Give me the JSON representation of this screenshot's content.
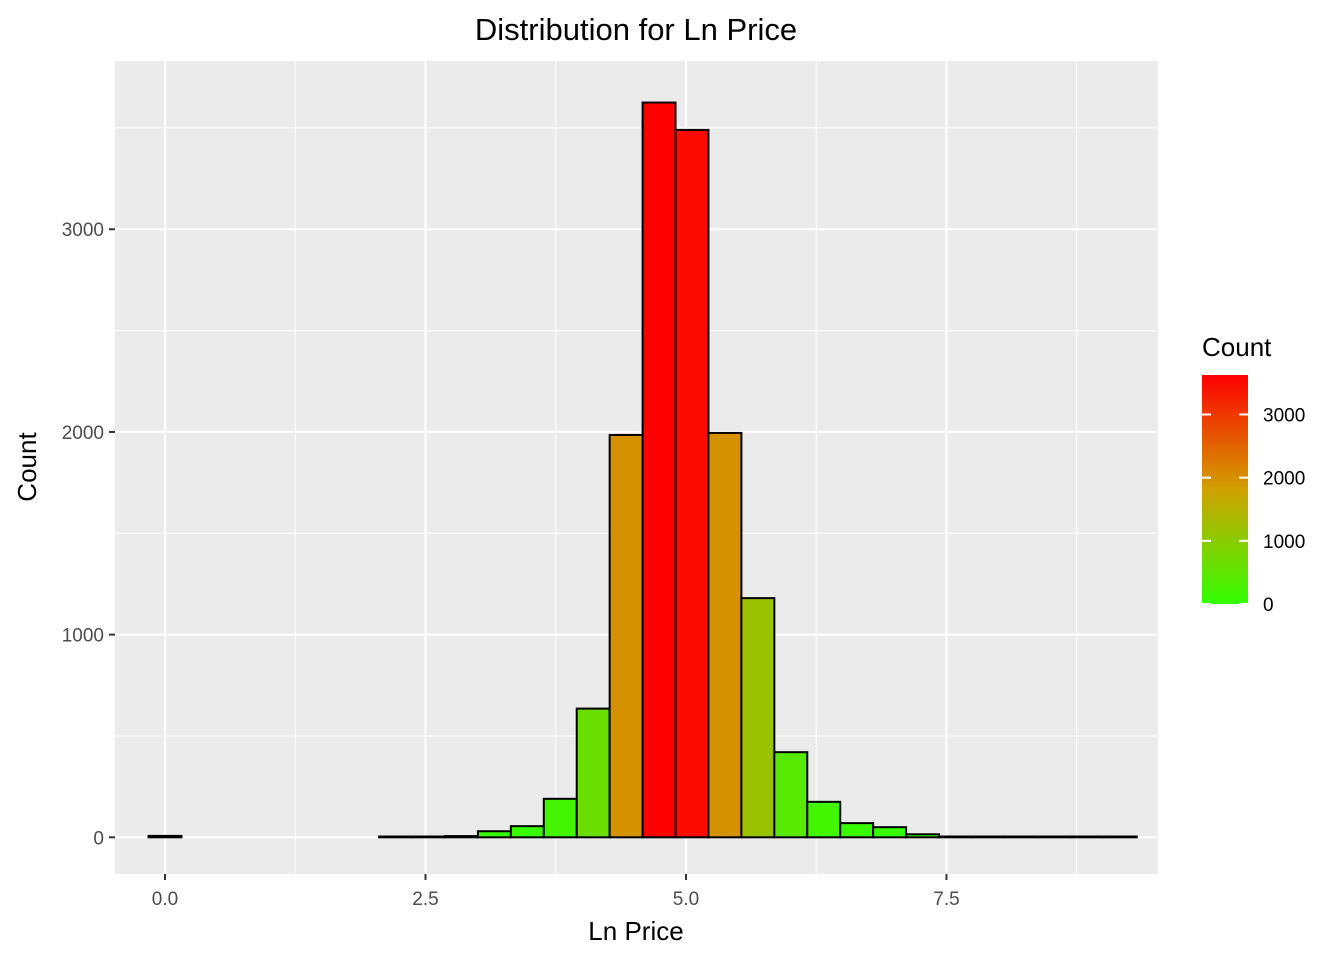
{
  "chart_data": {
    "type": "bar",
    "title": "Distribution for Ln Price",
    "xlabel": "Ln Price",
    "ylabel": "Count",
    "xlim": [
      -0.48,
      9.53
    ],
    "ylim": [
      -181,
      3830
    ],
    "xticks": [
      0,
      2.5,
      5,
      7.5
    ],
    "xtick_labels": [
      "0.0",
      "2.5",
      "5.0",
      "7.5"
    ],
    "yticks": [
      0,
      1000,
      2000,
      3000
    ],
    "ytick_labels": [
      "0",
      "1000",
      "2000",
      "3000"
    ],
    "grid": true,
    "bin_width": 0.3161,
    "bins_start": -0.158,
    "values": [
      7,
      0,
      0,
      0,
      0,
      0,
      0,
      4,
      4,
      6,
      30,
      55,
      190,
      635,
      1985,
      3625,
      3490,
      1995,
      1180,
      420,
      175,
      70,
      50,
      15,
      4,
      4,
      4,
      4,
      4,
      4
    ],
    "legend": {
      "title": "Count",
      "position": "right",
      "labels": [
        "3000",
        "2000",
        "1000",
        "0"
      ],
      "values": [
        3000,
        2000,
        1000,
        0
      ],
      "min": 0,
      "max": 3625,
      "color_low": "#33ff00",
      "color_mid": "#d1a100",
      "color_high": "#ff0000"
    },
    "colors": {
      "panel_bg": "#ebebeb",
      "grid": "#ffffff",
      "bar_outline": "#000000"
    }
  }
}
